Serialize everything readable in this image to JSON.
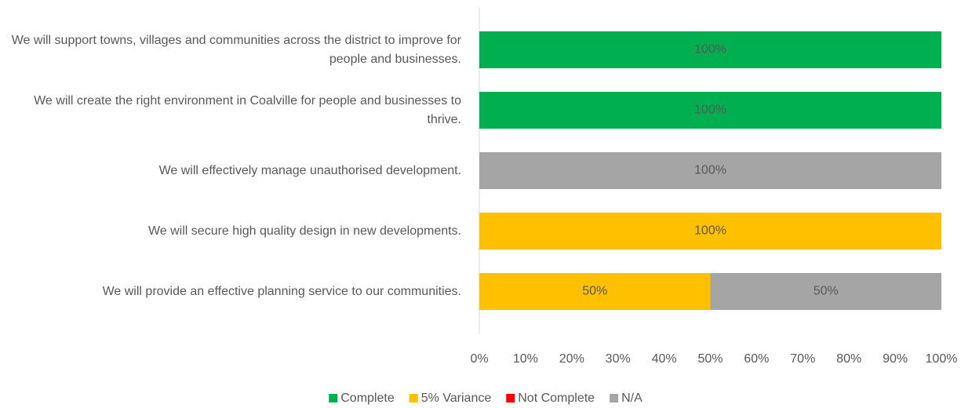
{
  "chart_data": {
    "type": "stacked-bar-horizontal",
    "categories": [
      "We will support towns, villages and communities across the district to improve for people and businesses.",
      "We will create the right environment in Coalville for people and businesses to thrive.",
      "We will effectively manage unauthorised development.",
      "We will secure high quality design in new developments.",
      "We will provide an effective planning service to our communities."
    ],
    "series": [
      {
        "name": "Complete",
        "color": "#00b050",
        "values": [
          100,
          100,
          0,
          0,
          0
        ],
        "value_labels": [
          "100%",
          "100%",
          null,
          null,
          null
        ]
      },
      {
        "name": "5% Variance",
        "color": "#ffc000",
        "values": [
          0,
          0,
          0,
          100,
          50
        ],
        "value_labels": [
          null,
          null,
          null,
          "100%",
          "50%"
        ]
      },
      {
        "name": "Not Complete",
        "color": "#ff0000",
        "values": [
          0,
          0,
          0,
          0,
          0
        ],
        "value_labels": [
          null,
          null,
          null,
          null,
          null
        ]
      },
      {
        "name": "N/A",
        "color": "#a5a5a5",
        "values": [
          0,
          0,
          100,
          0,
          50
        ],
        "value_labels": [
          null,
          null,
          "100%",
          null,
          "50%"
        ]
      }
    ],
    "xlim": [
      0,
      100
    ],
    "xticks": [
      {
        "value": 0,
        "label": "0%"
      },
      {
        "value": 10,
        "label": "10%"
      },
      {
        "value": 20,
        "label": "20%"
      },
      {
        "value": 30,
        "label": "30%"
      },
      {
        "value": 40,
        "label": "40%"
      },
      {
        "value": 50,
        "label": "50%"
      },
      {
        "value": 60,
        "label": "60%"
      },
      {
        "value": 70,
        "label": "70%"
      },
      {
        "value": 80,
        "label": "80%"
      },
      {
        "value": 90,
        "label": "90%"
      },
      {
        "value": 100,
        "label": "100%"
      }
    ],
    "grid": false,
    "legend": "bottom"
  }
}
